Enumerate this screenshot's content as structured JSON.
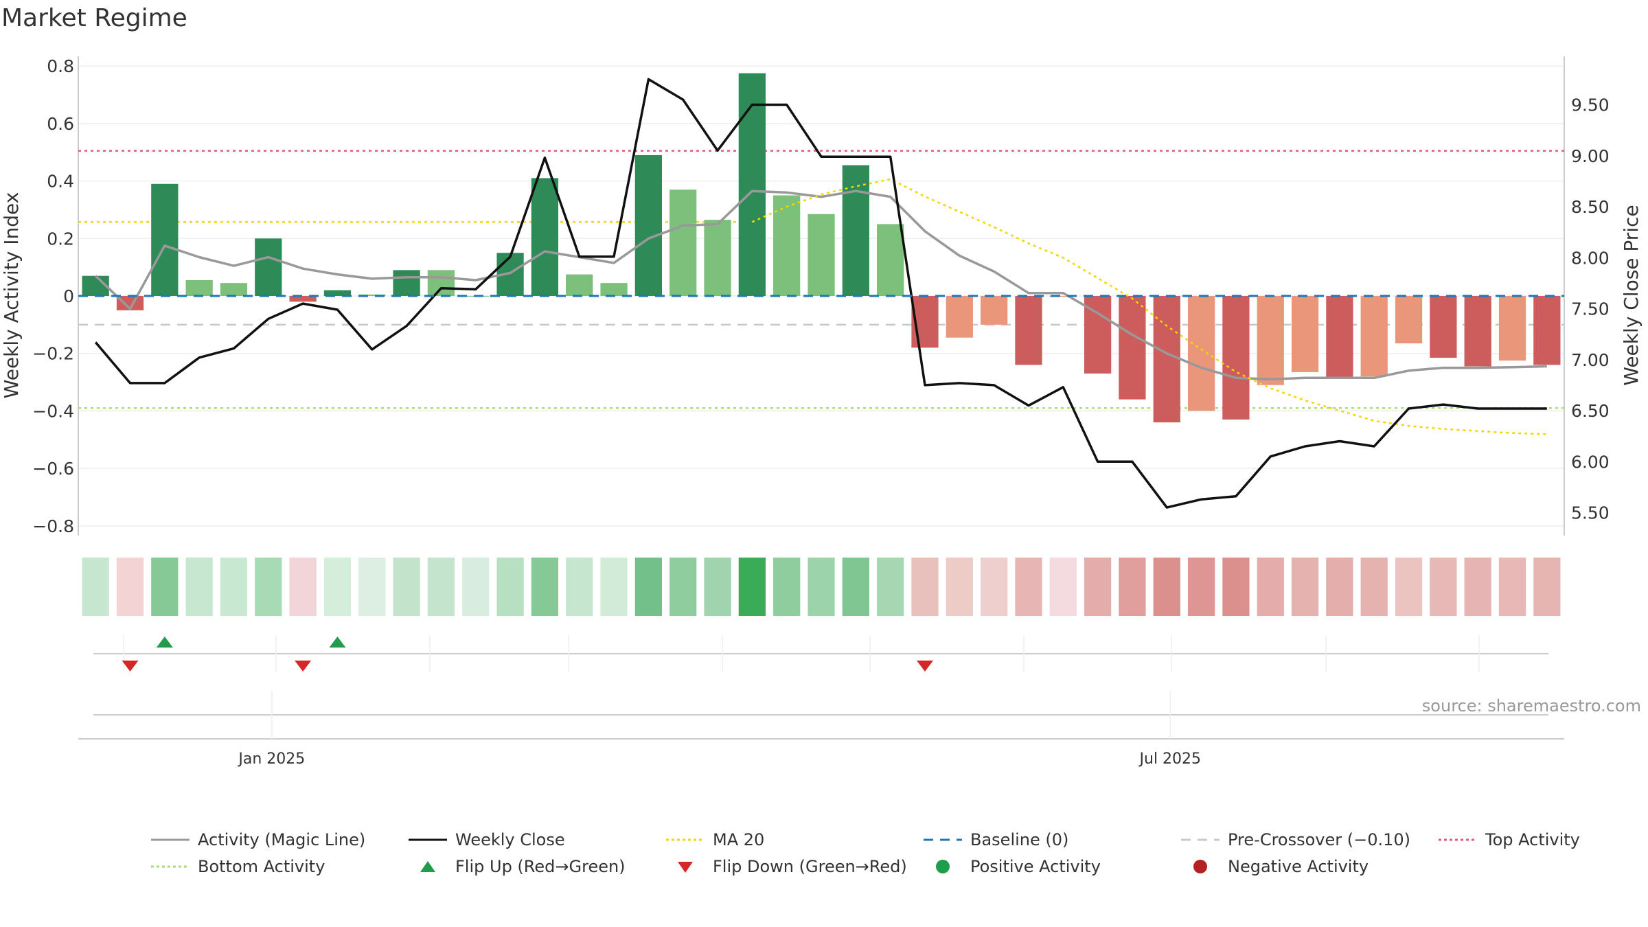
{
  "title": "Market Regime",
  "source": "source: sharemaestro.com",
  "colors": {
    "magic_line": "#999999",
    "weekly_close": "#111111",
    "ma20": "#f2d600",
    "baseline": "#1f77b4",
    "pre_crossover": "#c8c8c8",
    "top_activity": "#e05a7a",
    "bottom_activity": "#a8e070",
    "flip_up": "#1e9e4a",
    "flip_down": "#d62728",
    "positive": "#1e9e4a",
    "negative": "#b22222"
  },
  "chart_data": {
    "type": "bar",
    "title": "Market Regime",
    "ylabel_left": "Weekly Activity Index",
    "ylabel_right": "Weekly Close Price",
    "ylim_left": [
      -0.85,
      0.85
    ],
    "ylim_right": [
      5.38,
      9.98
    ],
    "yticks_left": [
      "0.8",
      "0.6",
      "0.4",
      "0.2",
      "0",
      "−0.2",
      "−0.4",
      "−0.6",
      "−0.8"
    ],
    "yticks_right": [
      "9.50",
      "9.00",
      "8.50",
      "8.00",
      "7.50",
      "7.00",
      "6.50",
      "6.00",
      "5.50"
    ],
    "xticks": [
      "Jan 2025",
      "Jul 2025"
    ],
    "xtick_week_index": [
      5.6,
      31.6
    ],
    "weeks": 43,
    "activity": [
      0.07,
      -0.05,
      0.39,
      0.055,
      0.045,
      0.2,
      -0.02,
      0.02,
      0.005,
      0.09,
      0.09,
      0.0,
      0.15,
      0.41,
      0.075,
      0.045,
      0.49,
      0.37,
      0.265,
      0.775,
      0.35,
      0.285,
      0.455,
      0.25,
      -0.18,
      -0.145,
      -0.1,
      -0.24,
      -0.003,
      -0.27,
      -0.36,
      -0.44,
      -0.4,
      -0.43,
      -0.31,
      -0.265,
      -0.285,
      -0.28,
      -0.165,
      -0.215,
      -0.245,
      -0.225,
      -0.24
    ],
    "bar_colors": [
      "#2e8b57",
      "#cd5c5c",
      "#2e8b57",
      "#7cc07c",
      "#7cc07c",
      "#2e8b57",
      "#cd5c5c",
      "#2e8b57",
      "#7cc07c",
      "#2e8b57",
      "#7cc07c",
      "#7cc07c",
      "#2e8b57",
      "#2e8b57",
      "#7cc07c",
      "#7cc07c",
      "#2e8b57",
      "#7cc07c",
      "#7cc07c",
      "#2e8b57",
      "#7cc07c",
      "#7cc07c",
      "#2e8b57",
      "#7cc07c",
      "#cd5c5c",
      "#e9967a",
      "#e9967a",
      "#cd5c5c",
      "#e9967a",
      "#cd5c5c",
      "#cd5c5c",
      "#cd5c5c",
      "#e9967a",
      "#cd5c5c",
      "#e9967a",
      "#e9967a",
      "#cd5c5c",
      "#e9967a",
      "#e9967a",
      "#cd5c5c",
      "#cd5c5c",
      "#e9967a",
      "#cd5c5c"
    ],
    "heat_colors": [
      "#c6e6cf",
      "#f3d3d3",
      "#86c996",
      "#c8e7d0",
      "#c9e8d1",
      "#a9dab6",
      "#f1d5d9",
      "#d5eddb",
      "#dcefe2",
      "#c3e3cb",
      "#c5e4cd",
      "#d8ede0",
      "#b7dfc1",
      "#86c996",
      "#c6e6cf",
      "#d2ebd8",
      "#74c08a",
      "#8fcd9f",
      "#a0d4ae",
      "#3aab56",
      "#8fcd9f",
      "#9cd3aa",
      "#80c693",
      "#a6d7b2",
      "#e9c1bc",
      "#edcbc7",
      "#efcfcd",
      "#e7b6b4",
      "#f3dbdf",
      "#e4acaa",
      "#e09f9d",
      "#dc908e",
      "#de9694",
      "#dc908e",
      "#e4adab",
      "#e6b2b0",
      "#e3aeac",
      "#e5b2b0",
      "#ebc3c1",
      "#e7b8b6",
      "#e6b5b3",
      "#e7b8b6",
      "#e6b5b3"
    ],
    "magic_line": [
      0.07,
      -0.045,
      0.175,
      0.135,
      0.105,
      0.135,
      0.095,
      0.075,
      0.06,
      0.065,
      0.065,
      0.055,
      0.08,
      0.155,
      0.135,
      0.115,
      0.2,
      0.245,
      0.25,
      0.365,
      0.36,
      0.345,
      0.365,
      0.345,
      0.225,
      0.14,
      0.085,
      0.01,
      0.01,
      -0.06,
      -0.135,
      -0.2,
      -0.25,
      -0.285,
      -0.29,
      -0.285,
      -0.285,
      -0.285,
      -0.26,
      -0.25,
      -0.25,
      -0.248,
      -0.245
    ],
    "weekly_close": [
      7.17,
      6.77,
      6.77,
      7.02,
      7.11,
      7.4,
      7.55,
      7.49,
      7.1,
      7.33,
      7.7,
      7.69,
      8.01,
      8.98,
      8.01,
      8.01,
      9.75,
      9.55,
      9.05,
      9.5,
      9.5,
      8.99,
      8.99,
      8.99,
      6.75,
      6.77,
      6.75,
      6.55,
      6.73,
      6.0,
      6.0,
      5.55,
      5.63,
      5.66,
      6.05,
      6.15,
      6.2,
      6.15,
      6.52,
      6.56,
      6.52,
      6.52,
      6.52
    ],
    "ma20": [
      null,
      null,
      null,
      null,
      null,
      null,
      null,
      null,
      null,
      null,
      null,
      null,
      null,
      null,
      null,
      null,
      null,
      null,
      null,
      8.35,
      8.5,
      8.62,
      8.7,
      8.77,
      8.6,
      8.45,
      8.3,
      8.14,
      8.0,
      7.8,
      7.6,
      7.33,
      7.1,
      6.88,
      6.72,
      6.6,
      6.5,
      6.4,
      6.35,
      6.32,
      6.3,
      6.28,
      6.27
    ],
    "baseline": 0,
    "pre_crossover": -0.1,
    "top_activity": 0.505,
    "bottom_activity": -0.39,
    "flip_up_weeks": [
      2,
      7
    ],
    "flip_down_weeks": [
      1,
      6,
      24
    ],
    "legend": [
      "Activity (Magic Line)",
      "Weekly Close",
      "MA 20",
      "Baseline (0)",
      "Pre-Crossover (−0.10)",
      "Top Activity",
      "Bottom Activity",
      "Flip Up (Red→Green)",
      "Flip Down (Green→Red)",
      "Positive Activity",
      "Negative Activity"
    ],
    "grid": true
  }
}
